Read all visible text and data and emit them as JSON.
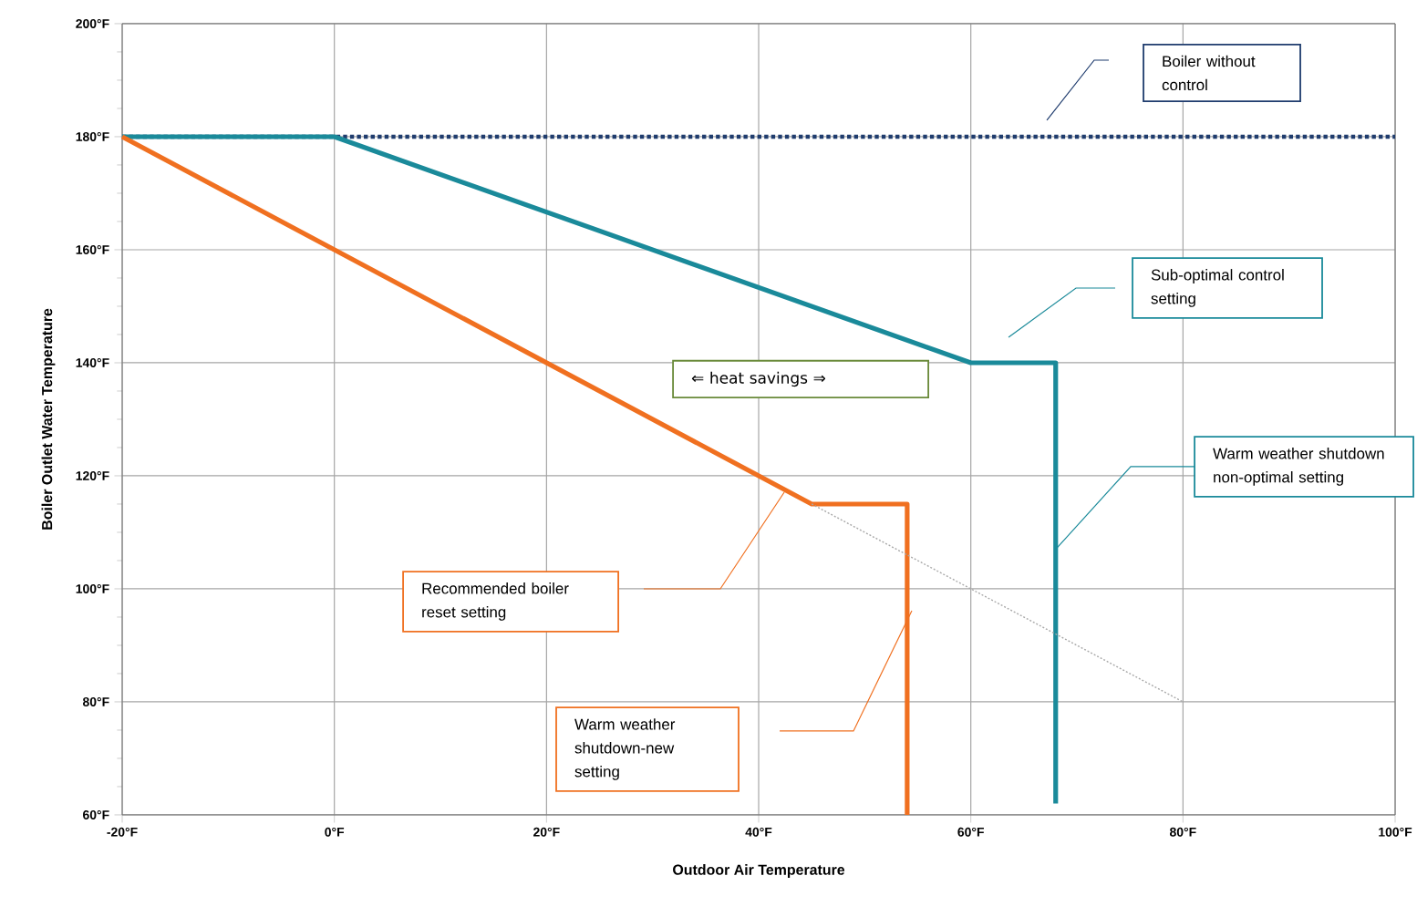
{
  "chart_data": {
    "type": "line",
    "xlabel": "Outdoor Air Temperature",
    "ylabel": "Boiler Outlet Water Temperature",
    "xlim": [
      -20,
      100
    ],
    "ylim": [
      60,
      200
    ],
    "xticks": [
      {
        "value": -20,
        "label": "-20°F"
      },
      {
        "value": 0,
        "label": "0°F"
      },
      {
        "value": 20,
        "label": "20°F"
      },
      {
        "value": 40,
        "label": "40°F"
      },
      {
        "value": 60,
        "label": "60°F"
      },
      {
        "value": 80,
        "label": "80°F"
      },
      {
        "value": 100,
        "label": "100°F"
      }
    ],
    "yticks": [
      {
        "value": 60,
        "label": "60°F"
      },
      {
        "value": 80,
        "label": "80°F"
      },
      {
        "value": 100,
        "label": "100°F"
      },
      {
        "value": 120,
        "label": "120°F"
      },
      {
        "value": 140,
        "label": "140°F"
      },
      {
        "value": 160,
        "label": "160°F"
      },
      {
        "value": 180,
        "label": "180°F"
      },
      {
        "value": 200,
        "label": "200°F"
      }
    ],
    "grid": true,
    "marker": "none",
    "series": [
      {
        "color": "#1f3c6e",
        "line_style": "dotted",
        "x": [
          -20,
          100
        ],
        "values": [
          180,
          180
        ]
      },
      {
        "color": "#1a8a9a",
        "line_style": "solid",
        "x": [
          -20,
          0,
          60,
          68,
          68
        ],
        "values": [
          180,
          180,
          140,
          140,
          62
        ]
      },
      {
        "color": "#a8a8a8",
        "line_style": "dotted",
        "x": [
          45,
          80
        ],
        "values": [
          115,
          80
        ]
      },
      {
        "color": "#f07020",
        "line_style": "solid",
        "x": [
          -20,
          45,
          54,
          54
        ],
        "values": [
          180,
          115,
          115,
          60
        ]
      }
    ],
    "annotations": [
      "Boiler without control",
      "Sub-optimal control setting",
      {
        "text": "Warm weather shutdown non-optimal setting",
        "x": 68,
        "y": 107
      },
      "⇐ heat savings ⇒",
      "Recommended boiler reset setting",
      "Warm weather shutdown-new setting"
    ]
  }
}
